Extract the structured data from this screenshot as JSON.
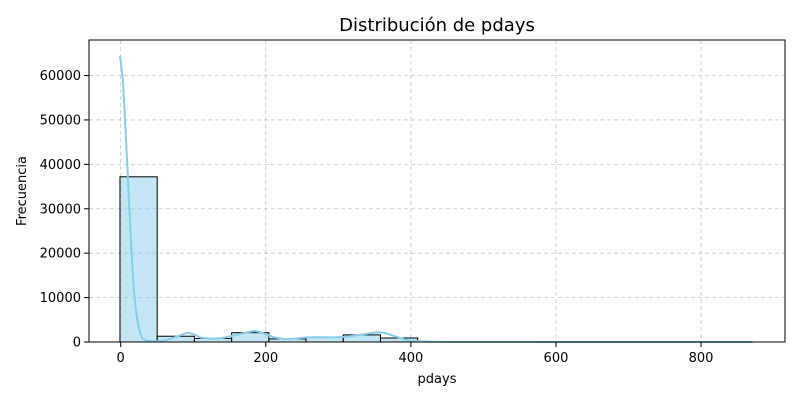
{
  "chart_data": {
    "type": "bar",
    "title": "Distribución de pdays",
    "xlabel": "pdays",
    "ylabel": "Frecuencia",
    "xlim": [
      -43.7,
      915.7
    ],
    "ylim": [
      0,
      68000
    ],
    "x_ticks": [
      0,
      200,
      400,
      600,
      800
    ],
    "y_ticks": [
      0,
      10000,
      20000,
      30000,
      40000,
      50000,
      60000
    ],
    "grid": true,
    "bar_color": "#87CEEB",
    "line_color": "#87CEEB",
    "edge_color": "#000000",
    "bins": [
      {
        "x0": -1,
        "x1": 50.3,
        "value": 37200
      },
      {
        "x0": 50.3,
        "x1": 101.6,
        "value": 1300
      },
      {
        "x0": 101.6,
        "x1": 152.9,
        "value": 800
      },
      {
        "x0": 152.9,
        "x1": 204.2,
        "value": 2100
      },
      {
        "x0": 204.2,
        "x1": 255.5,
        "value": 700
      },
      {
        "x0": 255.5,
        "x1": 306.8,
        "value": 1100
      },
      {
        "x0": 306.8,
        "x1": 358.1,
        "value": 1600
      },
      {
        "x0": 358.1,
        "x1": 409.4,
        "value": 900
      },
      {
        "x0": 409.4,
        "x1": 460.7,
        "value": 50
      },
      {
        "x0": 460.7,
        "x1": 512.0,
        "value": 30
      },
      {
        "x0": 512.0,
        "x1": 563.3,
        "value": 20
      },
      {
        "x0": 563.3,
        "x1": 614.6,
        "value": 10
      },
      {
        "x0": 614.6,
        "x1": 665.9,
        "value": 10
      },
      {
        "x0": 665.9,
        "x1": 717.2,
        "value": 5
      },
      {
        "x0": 717.2,
        "x1": 768.5,
        "value": 5
      },
      {
        "x0": 768.5,
        "x1": 819.8,
        "value": 3
      },
      {
        "x0": 819.8,
        "x1": 871.0,
        "value": 3
      }
    ],
    "kde": [
      [
        -1,
        64500
      ],
      [
        3,
        59000
      ],
      [
        6,
        50000
      ],
      [
        9,
        40000
      ],
      [
        12,
        30000
      ],
      [
        15,
        20000
      ],
      [
        18,
        12000
      ],
      [
        21,
        7000
      ],
      [
        24,
        4000
      ],
      [
        27,
        2000
      ],
      [
        30,
        800
      ],
      [
        35,
        300
      ],
      [
        45,
        150
      ],
      [
        60,
        300
      ],
      [
        70,
        800
      ],
      [
        80,
        1400
      ],
      [
        92,
        2100
      ],
      [
        100,
        1800
      ],
      [
        110,
        1000
      ],
      [
        125,
        700
      ],
      [
        140,
        900
      ],
      [
        160,
        1600
      ],
      [
        175,
        2200
      ],
      [
        185,
        2500
      ],
      [
        195,
        2100
      ],
      [
        210,
        1100
      ],
      [
        225,
        650
      ],
      [
        240,
        750
      ],
      [
        255,
        1000
      ],
      [
        270,
        1100
      ],
      [
        290,
        1050
      ],
      [
        310,
        1150
      ],
      [
        330,
        1600
      ],
      [
        345,
        2000
      ],
      [
        355,
        2200
      ],
      [
        365,
        2000
      ],
      [
        380,
        1200
      ],
      [
        395,
        400
      ],
      [
        410,
        150
      ],
      [
        430,
        60
      ],
      [
        460,
        30
      ],
      [
        500,
        20
      ],
      [
        600,
        10
      ],
      [
        700,
        5
      ],
      [
        800,
        3
      ],
      [
        871,
        0
      ]
    ]
  }
}
